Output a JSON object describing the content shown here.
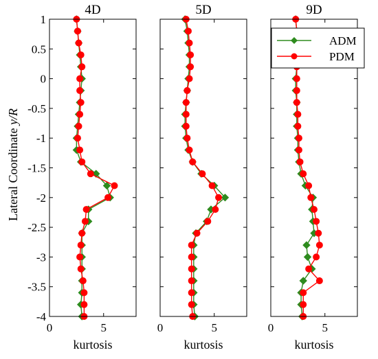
{
  "colors": {
    "adm": "#2e8b1e",
    "pdm": "#ff0000",
    "axis": "#000000"
  },
  "shared": {
    "ylabel_prefix": "Lateral Coordinate ",
    "ylabel_italic": "y/R",
    "y_ticks": [
      "1",
      "0.5",
      "0",
      "-0.5",
      "-1",
      "-1.5",
      "-2",
      "-2.5",
      "-3",
      "-3.5",
      "-4"
    ],
    "y_tick_values": [
      1,
      0.5,
      0,
      -0.5,
      -1,
      -1.5,
      -2,
      -2.5,
      -3,
      -3.5,
      -4
    ],
    "x_tick_values": [
      0,
      5
    ],
    "x_ticks": [
      "0",
      "5"
    ]
  },
  "legend": {
    "placement": "top-right",
    "items": [
      {
        "label": "ADM"
      },
      {
        "label": "PDM"
      }
    ]
  },
  "chart_data": [
    {
      "type": "line",
      "title": "4D",
      "xlabel": "kurtosis",
      "xlim": [
        0,
        8
      ],
      "ylim": [
        -4,
        1
      ],
      "series": [
        {
          "name": "ADM",
          "y": [
            1,
            0.8,
            0.6,
            0.4,
            0.2,
            0,
            -0.2,
            -0.4,
            -0.6,
            -0.8,
            -1,
            -1.2,
            -1.4,
            -1.6,
            -1.8,
            -2,
            -2.2,
            -2.4,
            -2.6,
            -2.8,
            -3,
            -3.2,
            -3.4,
            -3.6,
            -3.8,
            -4
          ],
          "x": [
            2.5,
            2.6,
            2.7,
            2.8,
            2.9,
            3.0,
            2.9,
            2.8,
            2.7,
            2.6,
            2.5,
            2.5,
            2.9,
            4.3,
            5.3,
            5.6,
            3.6,
            3.6,
            3.0,
            3.0,
            3.0,
            3.0,
            3.0,
            3.0,
            2.9,
            3.0
          ]
        },
        {
          "name": "PDM",
          "y": [
            1,
            0.8,
            0.6,
            0.4,
            0.2,
            0,
            -0.2,
            -0.4,
            -0.6,
            -0.8,
            -1,
            -1.2,
            -1.4,
            -1.6,
            -1.8,
            -2,
            -2.2,
            -2.4,
            -2.6,
            -2.8,
            -3,
            -3.2,
            -3.4,
            -3.6,
            -3.8,
            -4
          ],
          "x": [
            2.5,
            2.6,
            2.7,
            2.9,
            3.0,
            2.8,
            2.8,
            2.9,
            2.8,
            2.7,
            2.6,
            2.8,
            3.0,
            3.8,
            6.0,
            5.4,
            3.4,
            3.3,
            3.0,
            2.9,
            2.8,
            2.9,
            3.1,
            3.2,
            3.2,
            3.2
          ]
        }
      ]
    },
    {
      "type": "line",
      "title": "5D",
      "xlabel": "kurtosis",
      "xlim": [
        0,
        8
      ],
      "ylim": [
        -4,
        1
      ],
      "series": [
        {
          "name": "ADM",
          "y": [
            1,
            0.8,
            0.6,
            0.4,
            0.2,
            0,
            -0.2,
            -0.4,
            -0.6,
            -0.8,
            -1,
            -1.2,
            -1.4,
            -1.6,
            -1.8,
            -2,
            -2.2,
            -2.4,
            -2.6,
            -2.8,
            -3,
            -3.2,
            -3.4,
            -3.6,
            -3.8,
            -4
          ],
          "x": [
            2.3,
            2.5,
            2.6,
            2.7,
            2.7,
            2.6,
            2.5,
            2.4,
            2.3,
            2.3,
            2.4,
            2.6,
            3.0,
            3.8,
            5.0,
            6.0,
            4.7,
            4.3,
            3.3,
            3.1,
            3.1,
            3.1,
            3.1,
            3.1,
            3.1,
            3.2
          ]
        },
        {
          "name": "PDM",
          "y": [
            1,
            0.8,
            0.6,
            0.4,
            0.2,
            0,
            -0.2,
            -0.4,
            -0.6,
            -0.8,
            -1,
            -1.2,
            -1.4,
            -1.6,
            -1.8,
            -2,
            -2.2,
            -2.4,
            -2.6,
            -2.8,
            -3,
            -3.2,
            -3.4,
            -3.6,
            -3.8,
            -4
          ],
          "x": [
            2.4,
            2.6,
            2.7,
            2.8,
            2.8,
            2.7,
            2.5,
            2.4,
            2.4,
            2.4,
            2.5,
            2.7,
            3.0,
            3.9,
            4.8,
            5.4,
            5.1,
            4.4,
            3.4,
            2.9,
            2.9,
            2.9,
            2.9,
            2.9,
            2.9,
            3.0
          ]
        }
      ]
    },
    {
      "type": "line",
      "title": "9D",
      "xlabel": "kurtosis",
      "xlim": [
        0,
        8
      ],
      "ylim": [
        -4,
        1
      ],
      "series": [
        {
          "name": "ADM",
          "y": [
            1,
            0.8,
            0.6,
            0.4,
            0.2,
            0,
            -0.2,
            -0.4,
            -0.6,
            -0.8,
            -1,
            -1.2,
            -1.4,
            -1.6,
            -1.8,
            -2,
            -2.2,
            -2.4,
            -2.6,
            -2.8,
            -3,
            -3.2,
            -3.4,
            -3.6,
            -3.8,
            -4
          ],
          "x": [
            2.3,
            2.4,
            2.4,
            2.4,
            2.4,
            2.3,
            2.3,
            2.4,
            2.4,
            2.4,
            2.5,
            2.5,
            2.6,
            2.8,
            3.2,
            3.9,
            3.8,
            3.9,
            4.0,
            3.3,
            3.4,
            3.8,
            3.0,
            2.8,
            2.8,
            2.9
          ]
        },
        {
          "name": "PDM",
          "y": [
            1,
            0.8,
            0.6,
            0.4,
            0.2,
            0,
            -0.2,
            -0.4,
            -0.6,
            -0.8,
            -1,
            -1.2,
            -1.4,
            -1.6,
            -1.8,
            -2,
            -2.2,
            -2.4,
            -2.6,
            -2.8,
            -3,
            -3.2,
            -3.4,
            -3.6,
            -3.8,
            -4
          ],
          "x": [
            2.3,
            2.4,
            2.5,
            2.5,
            2.4,
            2.4,
            2.4,
            2.4,
            2.5,
            2.5,
            2.6,
            2.6,
            2.7,
            3.0,
            3.5,
            3.7,
            4.0,
            4.2,
            4.4,
            4.5,
            4.2,
            3.5,
            4.5,
            3.0,
            3.0,
            3.0
          ]
        }
      ]
    }
  ]
}
